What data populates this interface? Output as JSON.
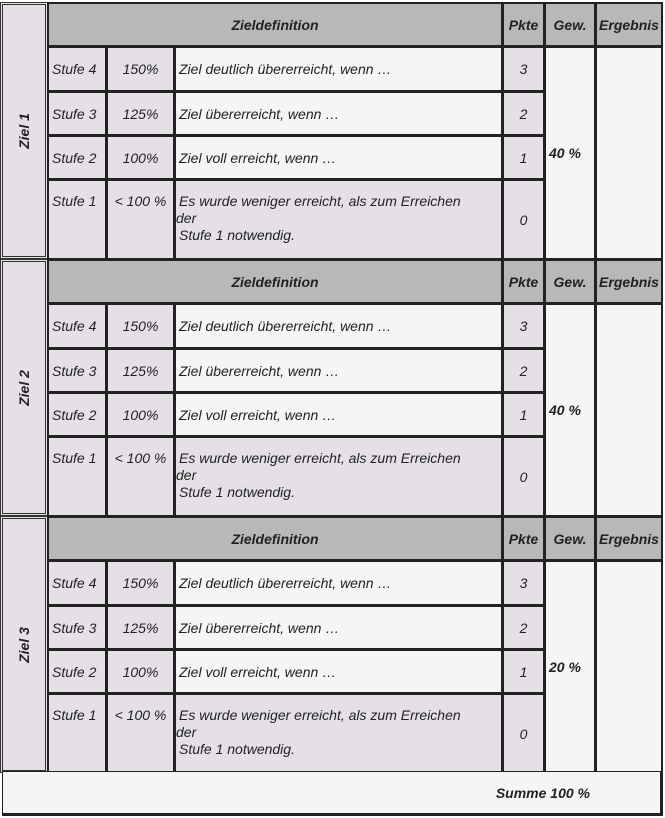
{
  "headers": {
    "zieldefinition": "Zieldefinition",
    "pkte": "Pkte",
    "gew": "Gew.",
    "ergebnis": "Ergebnis"
  },
  "blocks": [
    {
      "label": "Ziel 1",
      "weight": "40 %",
      "rows": [
        {
          "stufe": "Stufe 4",
          "pct": "150%",
          "desc": "Ziel deutlich übererreicht, wenn …",
          "pkte": "3"
        },
        {
          "stufe": "Stufe 3",
          "pct": "125%",
          "desc": "Ziel übererreicht, wenn …",
          "pkte": "2"
        },
        {
          "stufe": "Stufe 2",
          "pct": "100%",
          "desc": "Ziel voll erreicht, wenn …",
          "pkte": "1"
        },
        {
          "stufe": "Stufe 1",
          "pct": "< 100 %",
          "desc_lines": [
            "Es wurde weniger erreicht, als zum Erreichen",
            "der",
            "Stufe 1 notwendig."
          ],
          "pkte": "0"
        }
      ]
    },
    {
      "label": "Ziel 2",
      "weight": "40 %",
      "rows": [
        {
          "stufe": "Stufe 4",
          "pct": "150%",
          "desc": "Ziel deutlich übererreicht, wenn …",
          "pkte": "3"
        },
        {
          "stufe": "Stufe 3",
          "pct": "125%",
          "desc": "Ziel übererreicht, wenn …",
          "pkte": "2"
        },
        {
          "stufe": "Stufe 2",
          "pct": "100%",
          "desc": "Ziel voll erreicht, wenn …",
          "pkte": "1"
        },
        {
          "stufe": "Stufe 1",
          "pct": "< 100 %",
          "desc_lines": [
            "Es wurde weniger erreicht, als zum Erreichen",
            "der",
            "Stufe 1 notwendig."
          ],
          "pkte": "0"
        }
      ]
    },
    {
      "label": "Ziel 3",
      "weight": "20 %",
      "rows": [
        {
          "stufe": "Stufe 4",
          "pct": "150%",
          "desc": "Ziel deutlich übererreicht, wenn …",
          "pkte": "3"
        },
        {
          "stufe": "Stufe 3",
          "pct": "125%",
          "desc": "Ziel übererreicht, wenn …",
          "pkte": "2"
        },
        {
          "stufe": "Stufe 2",
          "pct": "100%",
          "desc": "Ziel voll erreicht, wenn …",
          "pkte": "1"
        },
        {
          "stufe": "Stufe 1",
          "pct": "< 100 %",
          "desc_lines": [
            "Es wurde weniger erreicht, als zum Erreichen",
            "der",
            "Stufe 1 notwendig."
          ],
          "pkte": "0"
        }
      ]
    }
  ],
  "summe": "Summe 100 %"
}
